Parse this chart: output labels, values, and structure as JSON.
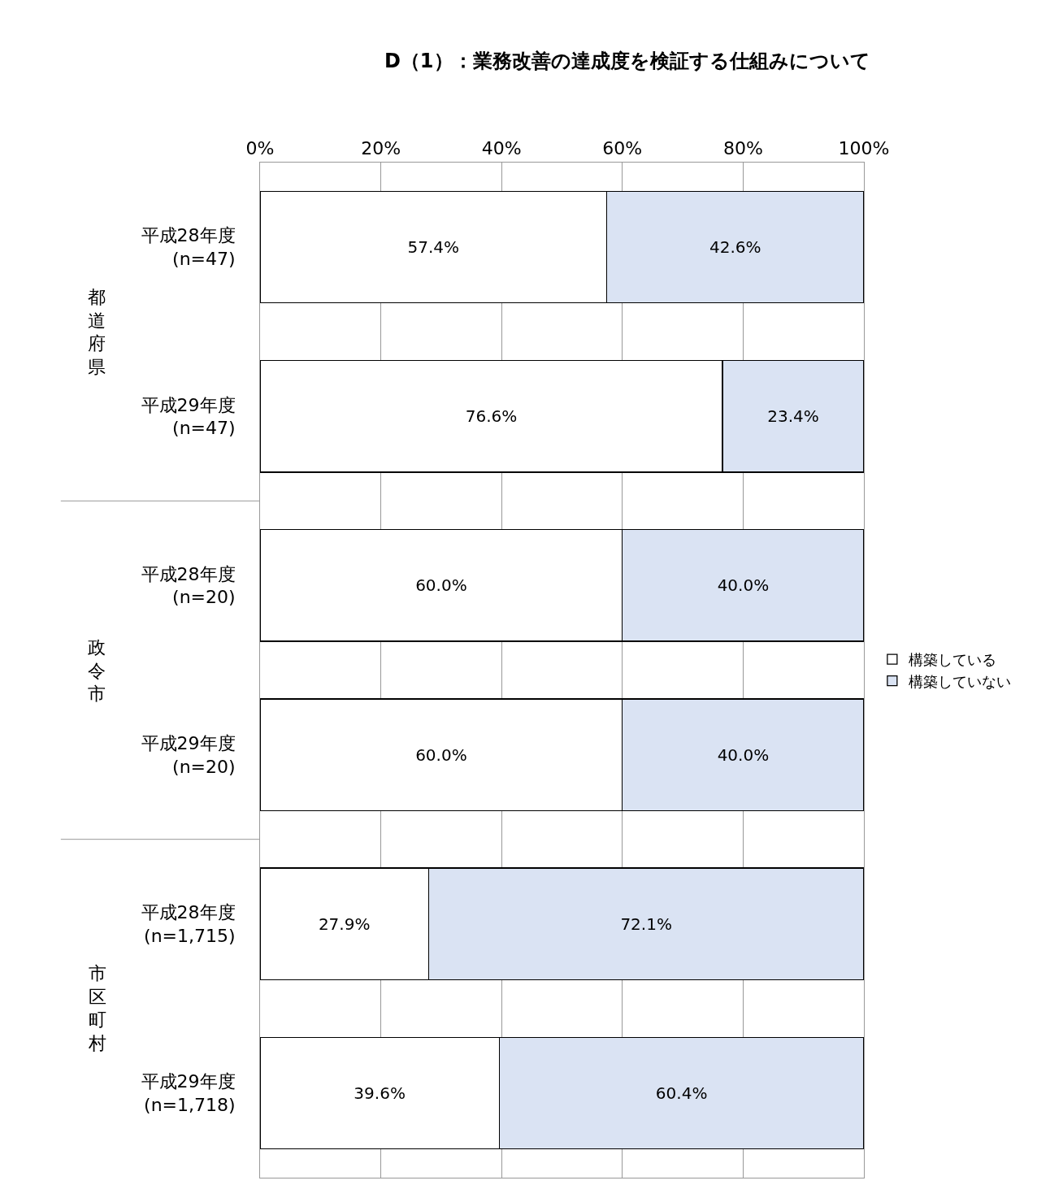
{
  "chart_data": {
    "type": "bar",
    "orientation": "horizontal",
    "stacked": true,
    "title": "D（1）：業務改善の達成度を検証する仕組みについて",
    "categories": [
      "平成28年度\n(n=47)",
      "平成29年度\n(n=47)",
      "平成28年度\n(n=20)",
      "平成29年度\n(n=20)",
      "平成28年度\n(n=1,715)",
      "平成29年度\n(n=1,718)"
    ],
    "series": [
      {
        "name": "構築している",
        "color": "#ffffff",
        "values": [
          57.4,
          76.6,
          60.0,
          60.0,
          27.9,
          39.6
        ],
        "value_labels": [
          "57.4%",
          "76.6%",
          "60.0%",
          "60.0%",
          "27.9%",
          "39.6%"
        ]
      },
      {
        "name": "構築していない",
        "color": "#dae3f3",
        "values": [
          42.6,
          23.4,
          40.0,
          40.0,
          72.1,
          60.4
        ],
        "value_labels": [
          "42.6%",
          "23.4%",
          "40.0%",
          "40.0%",
          "72.1%",
          "60.4%"
        ]
      }
    ],
    "annotations": [
      "都道府県",
      "政令市",
      "市区町村"
    ],
    "xlim": [
      0,
      100
    ],
    "xticks": [
      {
        "value": 0,
        "label": "0%"
      },
      {
        "value": 20,
        "label": "20%"
      },
      {
        "value": 40,
        "label": "40%"
      },
      {
        "value": 60,
        "label": "60%"
      },
      {
        "value": 80,
        "label": "80%"
      },
      {
        "value": 100,
        "label": "100%"
      }
    ],
    "grid": "x",
    "legend": "right"
  }
}
